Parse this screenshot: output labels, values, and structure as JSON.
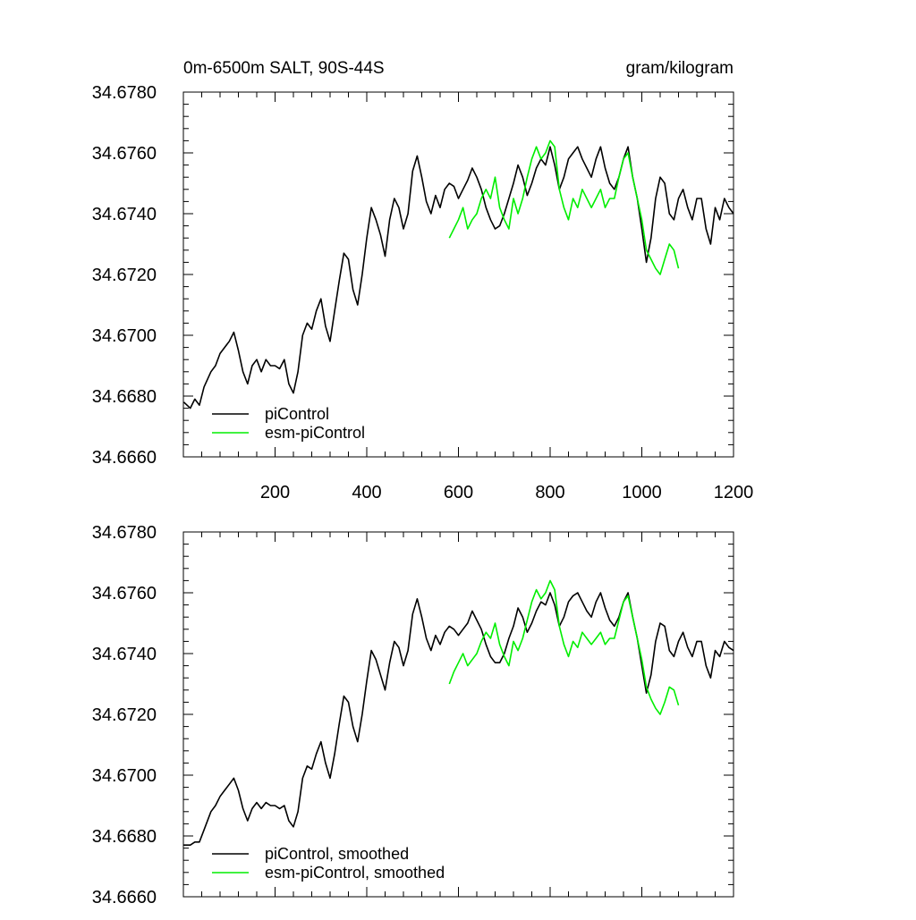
{
  "colors": {
    "pi": "#000000",
    "esm": "#00ee00",
    "axis": "#000000"
  },
  "chart_data": [
    {
      "type": "line",
      "title": "0m-6500m SALT, 90S-44S",
      "units": "gram/kilogram",
      "xlim": [
        0,
        1200
      ],
      "ylim": [
        34.666,
        34.678
      ],
      "xticks": [
        200,
        400,
        600,
        800,
        1000,
        1200
      ],
      "xtick_labels": [
        "200",
        "400",
        "600",
        "800",
        "1000",
        "1200"
      ],
      "yticks": [
        34.666,
        34.668,
        34.67,
        34.672,
        34.674,
        34.676,
        34.678
      ],
      "ytick_labels": [
        "34.6660",
        "34.6680",
        "34.6700",
        "34.6720",
        "34.6740",
        "34.6760",
        "34.6780"
      ],
      "legend_placement": "bottom-left",
      "series": [
        {
          "name": "piControl",
          "color": "#000000",
          "x": [
            1,
            15,
            25,
            35,
            45,
            60,
            70,
            80,
            90,
            100,
            110,
            120,
            130,
            140,
            150,
            160,
            170,
            180,
            190,
            200,
            210,
            220,
            230,
            240,
            250,
            260,
            270,
            280,
            290,
            300,
            310,
            320,
            330,
            340,
            350,
            360,
            370,
            380,
            390,
            400,
            410,
            420,
            430,
            440,
            450,
            460,
            470,
            480,
            490,
            500,
            510,
            520,
            530,
            540,
            550,
            560,
            570,
            580,
            590,
            600,
            610,
            620,
            630,
            640,
            650,
            660,
            670,
            680,
            690,
            700,
            710,
            720,
            730,
            740,
            750,
            760,
            770,
            780,
            790,
            800,
            810,
            820,
            830,
            840,
            850,
            860,
            870,
            880,
            890,
            900,
            910,
            920,
            930,
            940,
            950,
            960,
            970,
            980,
            990,
            1000,
            1010,
            1020,
            1030,
            1040,
            1050,
            1060,
            1070,
            1080,
            1090,
            1100,
            1110,
            1120,
            1130,
            1140,
            1150,
            1160,
            1170,
            1180,
            1190,
            1200
          ],
          "y": [
            34.6678,
            34.6676,
            34.6679,
            34.6677,
            34.6683,
            34.6688,
            34.669,
            34.6694,
            34.6696,
            34.6698,
            34.6701,
            34.6695,
            34.6688,
            34.6684,
            34.669,
            34.6692,
            34.6688,
            34.6692,
            34.669,
            34.669,
            34.6689,
            34.6692,
            34.6684,
            34.6681,
            34.6688,
            34.67,
            34.6704,
            34.6702,
            34.6708,
            34.6712,
            34.6703,
            34.6698,
            34.6708,
            34.6718,
            34.6727,
            34.6725,
            34.6715,
            34.671,
            34.672,
            34.6732,
            34.6742,
            34.6738,
            34.6733,
            34.6726,
            34.6738,
            34.6745,
            34.6742,
            34.6735,
            34.674,
            34.6754,
            34.6759,
            34.6752,
            34.6744,
            34.674,
            34.6746,
            34.6742,
            34.6748,
            34.675,
            34.6749,
            34.6745,
            34.6748,
            34.6751,
            34.6755,
            34.6752,
            34.6748,
            34.6742,
            34.6738,
            34.6735,
            34.6736,
            34.674,
            34.6745,
            34.675,
            34.6756,
            34.6752,
            34.6746,
            34.675,
            34.6755,
            34.6758,
            34.6756,
            34.6762,
            34.6756,
            34.6748,
            34.6752,
            34.6758,
            34.676,
            34.6762,
            34.6758,
            34.6755,
            34.6752,
            34.6758,
            34.6762,
            34.6755,
            34.675,
            34.6748,
            34.6752,
            34.6758,
            34.6762,
            34.6752,
            34.6745,
            34.6735,
            34.6724,
            34.6732,
            34.6745,
            34.6752,
            34.675,
            34.674,
            34.6738,
            34.6745,
            34.6748,
            34.6742,
            34.6738,
            34.6745,
            34.6745,
            34.6735,
            34.673,
            34.6742,
            34.6738,
            34.6745,
            34.6742,
            34.674
          ]
        },
        {
          "name": "esm-piControl",
          "color": "#00ee00",
          "x": [
            580,
            590,
            600,
            610,
            620,
            630,
            640,
            650,
            660,
            670,
            680,
            690,
            700,
            710,
            720,
            730,
            740,
            750,
            760,
            770,
            780,
            790,
            800,
            810,
            820,
            830,
            840,
            850,
            860,
            870,
            880,
            890,
            900,
            910,
            920,
            930,
            940,
            950,
            960,
            970,
            980,
            990,
            1000,
            1010,
            1020,
            1030,
            1040,
            1050,
            1060,
            1070,
            1080
          ],
          "y": [
            34.6732,
            34.6735,
            34.6738,
            34.6742,
            34.6735,
            34.6738,
            34.674,
            34.6745,
            34.6748,
            34.6745,
            34.6752,
            34.6742,
            34.6738,
            34.6735,
            34.6745,
            34.674,
            34.6745,
            34.6752,
            34.6758,
            34.6762,
            34.6758,
            34.676,
            34.6764,
            34.6762,
            34.6748,
            34.6742,
            34.6738,
            34.6745,
            34.6742,
            34.6748,
            34.6745,
            34.6742,
            34.6745,
            34.6748,
            34.6742,
            34.6745,
            34.6745,
            34.6752,
            34.6758,
            34.676,
            34.6752,
            34.6745,
            34.6738,
            34.6728,
            34.6725,
            34.6722,
            34.672,
            34.6725,
            34.673,
            34.6728,
            34.6722
          ]
        }
      ]
    },
    {
      "type": "line",
      "xlim": [
        0,
        1200
      ],
      "ylim": [
        34.666,
        34.678
      ],
      "xticks": [
        200,
        400,
        600,
        800,
        1000,
        1200
      ],
      "yticks": [
        34.666,
        34.668,
        34.67,
        34.672,
        34.674,
        34.676,
        34.678
      ],
      "ytick_labels": [
        "34.6660",
        "34.6680",
        "34.6700",
        "34.6720",
        "34.6740",
        "34.6760",
        "34.6780"
      ],
      "legend_placement": "bottom-left",
      "series": [
        {
          "name": "piControl, smoothed",
          "color": "#000000",
          "x": [
            1,
            15,
            25,
            35,
            45,
            60,
            70,
            80,
            90,
            100,
            110,
            120,
            130,
            140,
            150,
            160,
            170,
            180,
            190,
            200,
            210,
            220,
            230,
            240,
            250,
            260,
            270,
            280,
            290,
            300,
            310,
            320,
            330,
            340,
            350,
            360,
            370,
            380,
            390,
            400,
            410,
            420,
            430,
            440,
            450,
            460,
            470,
            480,
            490,
            500,
            510,
            520,
            530,
            540,
            550,
            560,
            570,
            580,
            590,
            600,
            610,
            620,
            630,
            640,
            650,
            660,
            670,
            680,
            690,
            700,
            710,
            720,
            730,
            740,
            750,
            760,
            770,
            780,
            790,
            800,
            810,
            820,
            830,
            840,
            850,
            860,
            870,
            880,
            890,
            900,
            910,
            920,
            930,
            940,
            950,
            960,
            970,
            980,
            990,
            1000,
            1010,
            1020,
            1030,
            1040,
            1050,
            1060,
            1070,
            1080,
            1090,
            1100,
            1110,
            1120,
            1130,
            1140,
            1150,
            1160,
            1170,
            1180,
            1190,
            1200
          ],
          "y": [
            34.6677,
            34.6677,
            34.6678,
            34.6678,
            34.6682,
            34.6688,
            34.669,
            34.6693,
            34.6695,
            34.6697,
            34.6699,
            34.6695,
            34.6689,
            34.6685,
            34.6689,
            34.6691,
            34.6689,
            34.6691,
            34.669,
            34.669,
            34.6689,
            34.669,
            34.6685,
            34.6683,
            34.6688,
            34.6699,
            34.6703,
            34.6702,
            34.6707,
            34.6711,
            34.6704,
            34.6699,
            34.6707,
            34.6717,
            34.6726,
            34.6724,
            34.6716,
            34.6711,
            34.672,
            34.6731,
            34.6741,
            34.6738,
            34.6733,
            34.6728,
            34.6737,
            34.6744,
            34.6742,
            34.6736,
            34.6741,
            34.6753,
            34.6758,
            34.6752,
            34.6745,
            34.6741,
            34.6746,
            34.6743,
            34.6747,
            34.6749,
            34.6748,
            34.6746,
            34.6748,
            34.675,
            34.6754,
            34.6751,
            34.6748,
            34.6743,
            34.6739,
            34.6737,
            34.6737,
            34.674,
            34.6745,
            34.6749,
            34.6755,
            34.6752,
            34.6747,
            34.675,
            34.6754,
            34.6757,
            34.6756,
            34.676,
            34.6756,
            34.6749,
            34.6752,
            34.6757,
            34.6759,
            34.676,
            34.6757,
            34.6754,
            34.6752,
            34.6757,
            34.676,
            34.6755,
            34.6751,
            34.6749,
            34.6752,
            34.6757,
            34.676,
            34.6752,
            34.6745,
            34.6736,
            34.6727,
            34.6733,
            34.6744,
            34.675,
            34.6749,
            34.6741,
            34.6739,
            34.6744,
            34.6747,
            34.6742,
            34.6739,
            34.6744,
            34.6744,
            34.6736,
            34.6732,
            34.6741,
            34.6739,
            34.6744,
            34.6742,
            34.6741
          ]
        },
        {
          "name": "esm-piControl, smoothed",
          "color": "#00ee00",
          "x": [
            580,
            590,
            600,
            610,
            620,
            630,
            640,
            650,
            660,
            670,
            680,
            690,
            700,
            710,
            720,
            730,
            740,
            750,
            760,
            770,
            780,
            790,
            800,
            810,
            820,
            830,
            840,
            850,
            860,
            870,
            880,
            890,
            900,
            910,
            920,
            930,
            940,
            950,
            960,
            970,
            980,
            990,
            1000,
            1010,
            1020,
            1030,
            1040,
            1050,
            1060,
            1070,
            1080
          ],
          "y": [
            34.673,
            34.6734,
            34.6737,
            34.674,
            34.6736,
            34.6738,
            34.674,
            34.6744,
            34.6747,
            34.6745,
            34.675,
            34.6743,
            34.6739,
            34.6736,
            34.6744,
            34.6741,
            34.6745,
            34.6751,
            34.6757,
            34.6761,
            34.6758,
            34.676,
            34.6764,
            34.6761,
            34.6749,
            34.6743,
            34.6739,
            34.6744,
            34.6742,
            34.6747,
            34.6745,
            34.6743,
            34.6745,
            34.6747,
            34.6743,
            34.6745,
            34.6745,
            34.6751,
            34.6757,
            34.6759,
            34.6752,
            34.6745,
            34.6738,
            34.6729,
            34.6725,
            34.6722,
            34.672,
            34.6724,
            34.6729,
            34.6728,
            34.6723
          ]
        }
      ]
    }
  ]
}
